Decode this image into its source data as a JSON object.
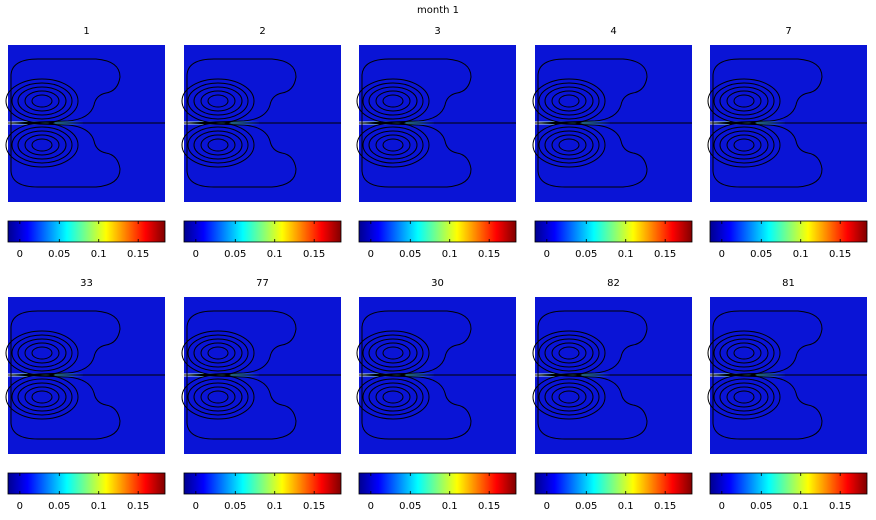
{
  "title": "month  1",
  "chart_data": [
    {
      "type": "heatmap",
      "title": "1",
      "zlim": [
        -0.015,
        0.184
      ],
      "zticks": [
        0,
        0.05,
        0.1,
        0.15
      ]
    },
    {
      "type": "heatmap",
      "title": "2",
      "zlim": [
        -0.015,
        0.184
      ],
      "zticks": [
        0,
        0.05,
        0.1,
        0.15
      ]
    },
    {
      "type": "heatmap",
      "title": "3",
      "zlim": [
        -0.015,
        0.184
      ],
      "zticks": [
        0,
        0.05,
        0.1,
        0.15
      ]
    },
    {
      "type": "heatmap",
      "title": "4",
      "zlim": [
        -0.015,
        0.184
      ],
      "zticks": [
        0,
        0.05,
        0.1,
        0.15
      ]
    },
    {
      "type": "heatmap",
      "title": "7",
      "zlim": [
        -0.015,
        0.184
      ],
      "zticks": [
        0,
        0.05,
        0.1,
        0.15
      ]
    },
    {
      "type": "heatmap",
      "title": "33",
      "zlim": [
        -0.015,
        0.184
      ],
      "zticks": [
        0,
        0.05,
        0.1,
        0.15
      ]
    },
    {
      "type": "heatmap",
      "title": "77",
      "zlim": [
        -0.015,
        0.184
      ],
      "zticks": [
        0,
        0.05,
        0.1,
        0.15
      ]
    },
    {
      "type": "heatmap",
      "title": "30",
      "zlim": [
        -0.015,
        0.184
      ],
      "zticks": [
        0,
        0.05,
        0.1,
        0.15
      ]
    },
    {
      "type": "heatmap",
      "title": "82",
      "zlim": [
        -0.015,
        0.184
      ],
      "zticks": [
        0,
        0.05,
        0.1,
        0.15
      ]
    },
    {
      "type": "heatmap",
      "title": "81",
      "zlim": [
        -0.015,
        0.184
      ],
      "zticks": [
        0,
        0.05,
        0.1,
        0.15
      ]
    }
  ]
}
